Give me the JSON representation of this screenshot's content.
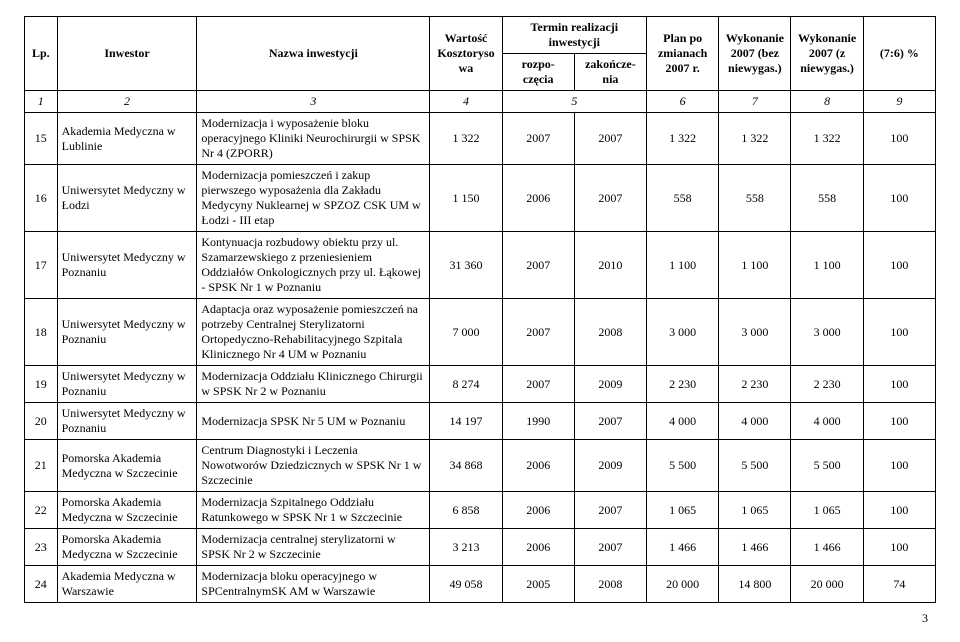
{
  "headers": {
    "lp": "Lp.",
    "inwestor": "Inwestor",
    "nazwa": "Nazwa inwestycji",
    "wartosc": "Wartość Kosztorysowa",
    "termin": "Termin realizacji inwestycji",
    "rozpo": "rozpo-częcia",
    "zakon": "zakończe-nia",
    "plan": "Plan po zmianach 2007 r.",
    "wyk_bez": "Wykonanie 2007 (bez niewygas.)",
    "wyk_z": "Wykonanie 2007 (z niewygas.)",
    "pct": "(7:6) %"
  },
  "num_row": [
    "1",
    "2",
    "3",
    "4",
    "5",
    "6",
    "7",
    "8",
    "9"
  ],
  "rows": [
    {
      "lp": "15",
      "inwestor": "Akademia Medyczna w Lublinie",
      "nazwa": "Modernizacja i wyposażenie bloku operacyjnego Kliniki Neurochirurgii w SPSK Nr 4 (ZPORR)",
      "wart": "1 322",
      "roz": "2007",
      "zak": "2007",
      "plan": "1 322",
      "bez": "1 322",
      "z": "1 322",
      "pct": "100"
    },
    {
      "lp": "16",
      "inwestor": "Uniwersytet Medyczny w Łodzi",
      "nazwa": "Modernizacja pomieszczeń i zakup pierwszego wyposażenia dla Zakładu Medycyny Nuklearnej w SPZOZ CSK UM w Łodzi - III etap",
      "wart": "1 150",
      "roz": "2006",
      "zak": "2007",
      "plan": "558",
      "bez": "558",
      "z": "558",
      "pct": "100"
    },
    {
      "lp": "17",
      "inwestor": "Uniwersytet Medyczny w Poznaniu",
      "nazwa": "Kontynuacja rozbudowy obiektu przy ul. Szamarzewskiego z przeniesieniem Oddziałów Onkologicznych przy ul. Łąkowej - SPSK Nr 1 w Poznaniu",
      "wart": "31 360",
      "roz": "2007",
      "zak": "2010",
      "plan": "1 100",
      "bez": "1 100",
      "z": "1 100",
      "pct": "100"
    },
    {
      "lp": "18",
      "inwestor": "Uniwersytet Medyczny w Poznaniu",
      "nazwa": "Adaptacja oraz wyposażenie pomieszczeń na potrzeby Centralnej Sterylizatorni Ortopedyczno-Rehabilitacyjnego Szpitala Klinicznego Nr 4 UM w Poznaniu",
      "wart": "7 000",
      "roz": "2007",
      "zak": "2008",
      "plan": "3 000",
      "bez": "3 000",
      "z": "3 000",
      "pct": "100"
    },
    {
      "lp": "19",
      "inwestor": "Uniwersytet Medyczny w Poznaniu",
      "nazwa": "Modernizacja Oddziału Klinicznego Chirurgii w SPSK Nr 2 w Poznaniu",
      "wart": "8 274",
      "roz": "2007",
      "zak": "2009",
      "plan": "2 230",
      "bez": "2 230",
      "z": "2 230",
      "pct": "100"
    },
    {
      "lp": "20",
      "inwestor": "Uniwersytet Medyczny w Poznaniu",
      "nazwa": "Modernizacja SPSK Nr 5 UM w Poznaniu",
      "wart": "14 197",
      "roz": "1990",
      "zak": "2007",
      "plan": "4 000",
      "bez": "4 000",
      "z": "4 000",
      "pct": "100"
    },
    {
      "lp": "21",
      "inwestor": "Pomorska Akademia Medyczna w Szczecinie",
      "nazwa": "Centrum Diagnostyki i Leczenia Nowotworów Dziedzicznych w SPSK Nr 1 w Szczecinie",
      "wart": "34 868",
      "roz": "2006",
      "zak": "2009",
      "plan": "5 500",
      "bez": "5 500",
      "z": "5 500",
      "pct": "100"
    },
    {
      "lp": "22",
      "inwestor": "Pomorska Akademia Medyczna w Szczecinie",
      "nazwa": "Modernizacja Szpitalnego Oddziału Ratunkowego w SPSK Nr 1 w Szczecinie",
      "wart": "6 858",
      "roz": "2006",
      "zak": "2007",
      "plan": "1 065",
      "bez": "1 065",
      "z": "1 065",
      "pct": "100"
    },
    {
      "lp": "23",
      "inwestor": "Pomorska Akademia Medyczna w Szczecinie",
      "nazwa": "Modernizacja centralnej sterylizatorni w SPSK Nr 2 w Szczecinie",
      "wart": "3 213",
      "roz": "2006",
      "zak": "2007",
      "plan": "1 466",
      "bez": "1 466",
      "z": "1 466",
      "pct": "100"
    },
    {
      "lp": "24",
      "inwestor": "Akademia Medyczna w Warszawie",
      "nazwa": "Modernizacja bloku operacyjnego w SPCentralnymSK AM w Warszawie",
      "wart": "49 058",
      "roz": "2005",
      "zak": "2008",
      "plan": "20 000",
      "bez": "14 800",
      "z": "20 000",
      "pct": "74"
    }
  ],
  "page_number": "3"
}
